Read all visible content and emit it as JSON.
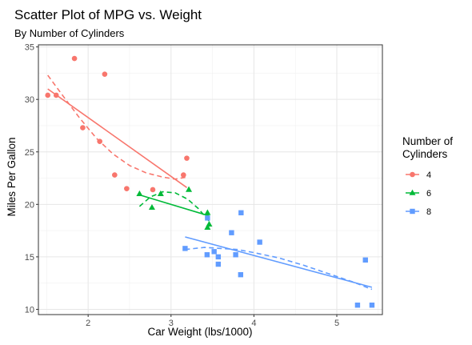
{
  "chart_data": {
    "type": "scatter",
    "title": "Scatter Plot of MPG vs. Weight",
    "subtitle": "By Number of Cylinders",
    "xlabel": "Car Weight (lbs/1000)",
    "ylabel": "Miles Per Gallon",
    "xlim": [
      1.4,
      5.55
    ],
    "ylim": [
      9.5,
      35.2
    ],
    "x_ticks": [
      2,
      3,
      4,
      5
    ],
    "y_ticks": [
      10,
      15,
      20,
      25,
      30,
      35
    ],
    "grid": true,
    "legend": {
      "title": "Number of Cylinders",
      "title_lines": [
        "Number of",
        "Cylinders"
      ],
      "placement": "right"
    },
    "series": [
      {
        "name": "4",
        "color": "#F8766D",
        "marker": "circle",
        "x": [
          2.32,
          3.19,
          3.15,
          2.2,
          1.615,
          1.835,
          2.465,
          1.935,
          2.14,
          1.513,
          2.78
        ],
        "y": [
          22.8,
          24.4,
          22.8,
          32.4,
          30.4,
          33.9,
          21.5,
          27.3,
          26.0,
          30.4,
          21.4
        ],
        "fit_linear": [
          [
            1.513,
            31.0
          ],
          [
            3.19,
            21.6
          ]
        ],
        "fit_smooth": [
          [
            1.513,
            32.3
          ],
          [
            1.7,
            30.3
          ],
          [
            1.9,
            28.2
          ],
          [
            2.1,
            26.3
          ],
          [
            2.3,
            24.8
          ],
          [
            2.5,
            23.7
          ],
          [
            2.7,
            23.0
          ],
          [
            2.9,
            22.6
          ],
          [
            3.05,
            22.4
          ],
          [
            3.19,
            22.6
          ]
        ]
      },
      {
        "name": "6",
        "color": "#00BA38",
        "marker": "triangle",
        "x": [
          2.62,
          2.875,
          3.215,
          3.46,
          3.44,
          3.44,
          2.77
        ],
        "y": [
          21.0,
          21.0,
          21.4,
          18.1,
          19.2,
          17.8,
          19.7
        ],
        "fit_linear": [
          [
            2.62,
            20.9
          ],
          [
            3.46,
            18.9
          ]
        ],
        "fit_smooth": [
          [
            2.62,
            19.8
          ],
          [
            2.75,
            20.7
          ],
          [
            2.9,
            21.2
          ],
          [
            3.05,
            21.1
          ],
          [
            3.2,
            20.5
          ],
          [
            3.33,
            19.6
          ],
          [
            3.46,
            18.4
          ]
        ]
      },
      {
        "name": "8",
        "color": "#619CFF",
        "marker": "square",
        "x": [
          3.44,
          3.57,
          4.07,
          3.73,
          3.78,
          5.25,
          5.424,
          5.345,
          3.52,
          3.435,
          3.84,
          3.845,
          3.17,
          3.57
        ],
        "y": [
          18.7,
          14.3,
          16.4,
          17.3,
          15.2,
          10.4,
          10.4,
          14.7,
          15.5,
          15.2,
          13.3,
          19.2,
          15.8,
          15.0
        ],
        "fit_linear": [
          [
            3.17,
            16.9
          ],
          [
            5.424,
            12.1
          ]
        ],
        "fit_smooth": [
          [
            3.17,
            15.7
          ],
          [
            3.4,
            15.9
          ],
          [
            3.6,
            15.8
          ],
          [
            3.8,
            15.7
          ],
          [
            4.0,
            15.4
          ],
          [
            4.3,
            14.9
          ],
          [
            4.6,
            14.2
          ],
          [
            4.9,
            13.4
          ],
          [
            5.2,
            12.6
          ],
          [
            5.424,
            11.9
          ]
        ]
      }
    ]
  }
}
